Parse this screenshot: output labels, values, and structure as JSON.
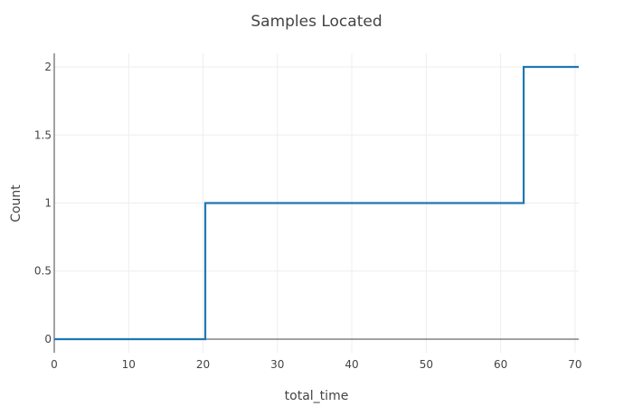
{
  "chart_data": {
    "type": "line",
    "line_shape": "step",
    "title": "Samples Located",
    "xlabel": "total_time",
    "ylabel": "Count",
    "xlim": [
      0,
      70.5
    ],
    "ylim": [
      -0.1,
      2.1
    ],
    "x_ticks": [
      0,
      10,
      20,
      30,
      40,
      50,
      60,
      70
    ],
    "x_tick_labels": [
      "0",
      "10",
      "20",
      "30",
      "40",
      "50",
      "60",
      "70"
    ],
    "y_ticks": [
      0,
      0.5,
      1,
      1.5,
      2
    ],
    "y_tick_labels": [
      "0",
      "0.5",
      "1",
      "1.5",
      "2"
    ],
    "grid": true,
    "legend": "none",
    "colors": {
      "line": "#1f77b4",
      "grid": "#eeeeee",
      "axis": "#444444",
      "background": "#ffffff"
    },
    "series": [
      {
        "x": [
          0,
          20.3,
          20.3,
          63.1,
          63.1,
          70.5
        ],
        "y": [
          0,
          0,
          1,
          1,
          2,
          2
        ]
      }
    ]
  }
}
